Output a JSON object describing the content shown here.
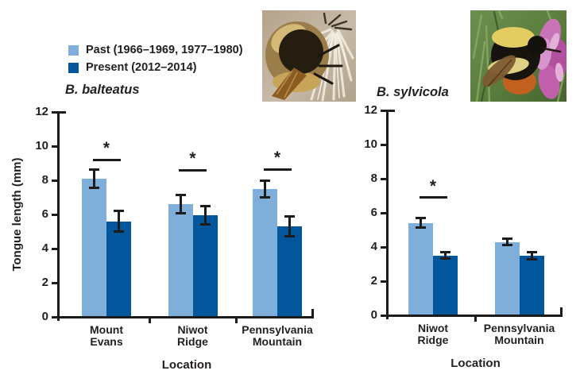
{
  "figure": {
    "y_axis_title": "Tongue length (mm)",
    "x_axis_title": "Location",
    "significance_symbol": "*"
  },
  "colors": {
    "past_bar": "#7faedb",
    "present_bar": "#02569b",
    "axis_and_text": "#231f20",
    "background": "#ffffff"
  },
  "legend": {
    "position": "top-left",
    "items": [
      {
        "key": "past",
        "label": "Past (1966–1969, 1977–1980)",
        "color": "#7faedb"
      },
      {
        "key": "present",
        "label": "Present (2012–2014)",
        "color": "#02569b"
      }
    ]
  },
  "photos": [
    {
      "name": "bee-photo-balteatus",
      "description": "bumblebee on pale dried seed head"
    },
    {
      "name": "bee-photo-sylvicola",
      "description": "bumblebee on pink clover flower"
    }
  ],
  "chart_data": [
    {
      "type": "bar",
      "title": "B. balteatus",
      "xlabel": "Location",
      "ylabel": "Tongue length (mm)",
      "ylim": [
        0,
        12
      ],
      "yticks": [
        0,
        2,
        4,
        6,
        8,
        10,
        12
      ],
      "grid": false,
      "categories": [
        "Mount Evans",
        "Niwot Ridge",
        "Pennsylvania Mountain"
      ],
      "series": [
        {
          "name": "Past (1966–1969, 1977–1980)",
          "color": "#7faedb",
          "values": [
            8.1,
            6.6,
            7.5
          ],
          "errors": [
            0.55,
            0.55,
            0.5
          ]
        },
        {
          "name": "Present (2012–2014)",
          "color": "#02569b",
          "values": [
            5.6,
            5.95,
            5.3
          ],
          "errors": [
            0.6,
            0.55,
            0.6
          ]
        }
      ],
      "significance": [
        {
          "symbol": "*",
          "level": 9.2
        },
        {
          "symbol": "*",
          "level": 8.6
        },
        {
          "symbol": "*",
          "level": 8.65
        }
      ]
    },
    {
      "type": "bar",
      "title": "B. sylvicola",
      "xlabel": "Location",
      "ylabel": "Tongue length (mm)",
      "ylim": [
        0,
        12
      ],
      "yticks": [
        0,
        2,
        4,
        6,
        8,
        10,
        12
      ],
      "grid": false,
      "categories": [
        "Niwot Ridge",
        "Pennsylvania Mountain"
      ],
      "series": [
        {
          "name": "Past (1966–1969, 1977–1980)",
          "color": "#7faedb",
          "values": [
            5.4,
            4.3
          ],
          "errors": [
            0.28,
            0.18
          ]
        },
        {
          "name": "Present (2012–2014)",
          "color": "#02569b",
          "values": [
            3.5,
            3.5
          ],
          "errors": [
            0.18,
            0.2
          ]
        }
      ],
      "significance": [
        {
          "symbol": "*",
          "level": 6.9
        },
        null
      ]
    }
  ]
}
